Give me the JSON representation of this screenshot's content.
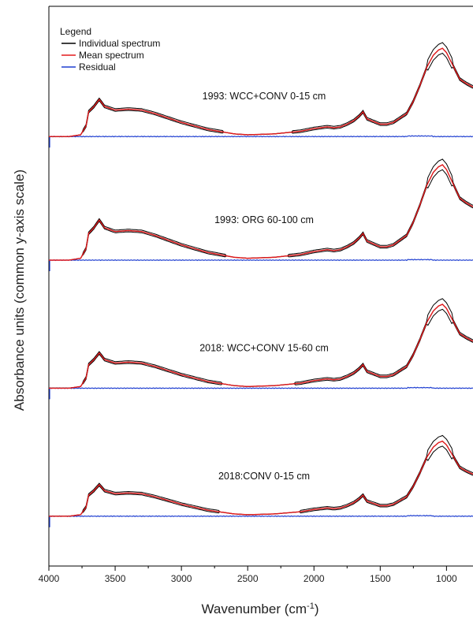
{
  "chart_data": {
    "type": "line",
    "title": "",
    "xlabel": "Wavenumber (cm",
    "xlabel_sup": "-1",
    "xlabel_close": ")",
    "ylabel": "Absorbance units (common y-axis scale)",
    "xlim": [
      4000,
      800
    ],
    "x_ticks": [
      4000,
      3500,
      3000,
      2500,
      2000,
      1500,
      1000
    ],
    "x_reversed": true,
    "y_ticks_shown": false,
    "grid": false,
    "legend": {
      "title": "Legend",
      "placement": "top-left",
      "entries": [
        {
          "label": "Individual spectrum",
          "color": "#000000"
        },
        {
          "label": "Mean spectrum",
          "color": "#e31a1c"
        },
        {
          "label": "Residual",
          "color": "#1f3fd1"
        }
      ]
    },
    "panels": [
      {
        "label": "1993: WCC+CONV 0-15 cm",
        "offset": 4.4,
        "peak_scale": 1.0
      },
      {
        "label": "1993: ORG 60-100 cm",
        "offset": 3.0,
        "peak_scale": 1.08
      },
      {
        "label": "2018: WCC+CONV 15-60 cm",
        "offset": 1.55,
        "peak_scale": 0.95
      },
      {
        "label": "2018:CONV 0-15 cm",
        "offset": 0.1,
        "peak_scale": 0.85
      }
    ],
    "mean_profile": {
      "x": [
        4000,
        3850,
        3760,
        3720,
        3700,
        3660,
        3620,
        3580,
        3500,
        3400,
        3300,
        3200,
        3000,
        2800,
        2600,
        2500,
        2300,
        2100,
        2000,
        1950,
        1900,
        1850,
        1800,
        1750,
        1700,
        1660,
        1630,
        1600,
        1500,
        1450,
        1400,
        1300,
        1250,
        1200,
        1150,
        1100,
        1060,
        1030,
        1000,
        950,
        900,
        850,
        800
      ],
      "y": [
        0.0,
        0.0,
        0.02,
        0.12,
        0.28,
        0.34,
        0.42,
        0.34,
        0.3,
        0.31,
        0.3,
        0.26,
        0.16,
        0.08,
        0.03,
        0.02,
        0.03,
        0.06,
        0.09,
        0.1,
        0.11,
        0.1,
        0.11,
        0.14,
        0.18,
        0.23,
        0.28,
        0.2,
        0.14,
        0.14,
        0.16,
        0.26,
        0.4,
        0.58,
        0.78,
        0.92,
        0.98,
        1.0,
        0.95,
        0.8,
        0.65,
        0.6,
        0.56
      ]
    },
    "residual_level": 0.0
  }
}
